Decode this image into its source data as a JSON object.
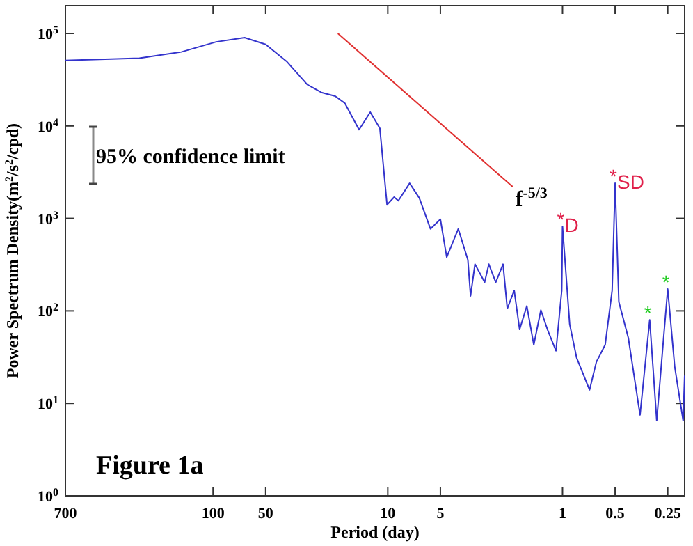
{
  "chart_data": {
    "type": "line",
    "xlabel": "Period (day)",
    "ylabel": "Power Spectrum Density(m$^{2}$/s$^{2}$/cpd)",
    "log": "xy",
    "xlim": [
      700,
      0.2
    ],
    "ylim": [
      1,
      200000
    ],
    "xticks": [
      700,
      100,
      50,
      10,
      5,
      1,
      0.5,
      0.25
    ],
    "yticks": [
      {
        "value": 1,
        "label": "10$^{0}$"
      },
      {
        "value": 10,
        "label": "10$^{1}$"
      },
      {
        "value": 100,
        "label": "10$^{2}$"
      },
      {
        "value": 1000,
        "label": "10$^{3}$"
      },
      {
        "value": 10000,
        "label": "10$^{4}$"
      },
      {
        "value": 100000,
        "label": "10$^{5}$"
      }
    ],
    "grid": false,
    "legend": false,
    "series": [
      {
        "color": "#3333cc",
        "x": [
          700,
          264,
          152,
          96,
          66,
          50,
          38,
          28.9,
          24,
          20,
          17.6,
          14.6,
          12.6,
          11.1,
          10.1,
          9.2,
          8.7,
          7.5,
          6.6,
          5.7,
          5.0,
          4.6,
          3.95,
          3.48,
          3.36,
          3.17,
          2.79,
          2.64,
          2.41,
          2.19,
          2.07,
          1.89,
          1.76,
          1.6,
          1.46,
          1.33,
          1.22,
          1.09,
          1.01,
          1.0,
          0.91,
          0.83,
          0.7,
          0.64,
          0.57,
          0.52,
          0.5,
          0.476,
          0.42,
          0.36,
          0.317,
          0.289,
          0.264,
          0.25,
          0.228,
          0.204,
          0.2
        ],
        "values": [
          51000,
          54000,
          63000,
          81000,
          90000,
          76000,
          50000,
          28000,
          23000,
          21000,
          17600,
          9100,
          14100,
          9400,
          1400,
          1700,
          1550,
          2400,
          1660,
          770,
          980,
          380,
          770,
          355,
          145,
          320,
          204,
          320,
          204,
          320,
          106,
          166,
          63,
          113,
          43,
          102,
          63,
          37,
          166,
          820,
          72,
          31,
          14,
          28,
          43,
          166,
          2400,
          125,
          51,
          7.5,
          80,
          6.5,
          51,
          172,
          25,
          6.5,
          20
        ]
      },
      {
        "type": "line",
        "name": "f$^{-5/3}$",
        "color": "#e03030",
        "x": [
          19.3,
          1.93
        ],
        "values": [
          100000,
          2200
        ]
      }
    ],
    "annotations": [
      "95% confidence limit",
      "Figure 1a",
      {
        "text": "*D",
        "x": 1,
        "y": 820
      },
      {
        "text": "*SD",
        "x": 0.5,
        "y": 2400
      },
      {
        "text": "*",
        "x": 0.317,
        "y": 80
      },
      {
        "text": "*",
        "x": 0.25,
        "y": 172
      }
    ]
  }
}
